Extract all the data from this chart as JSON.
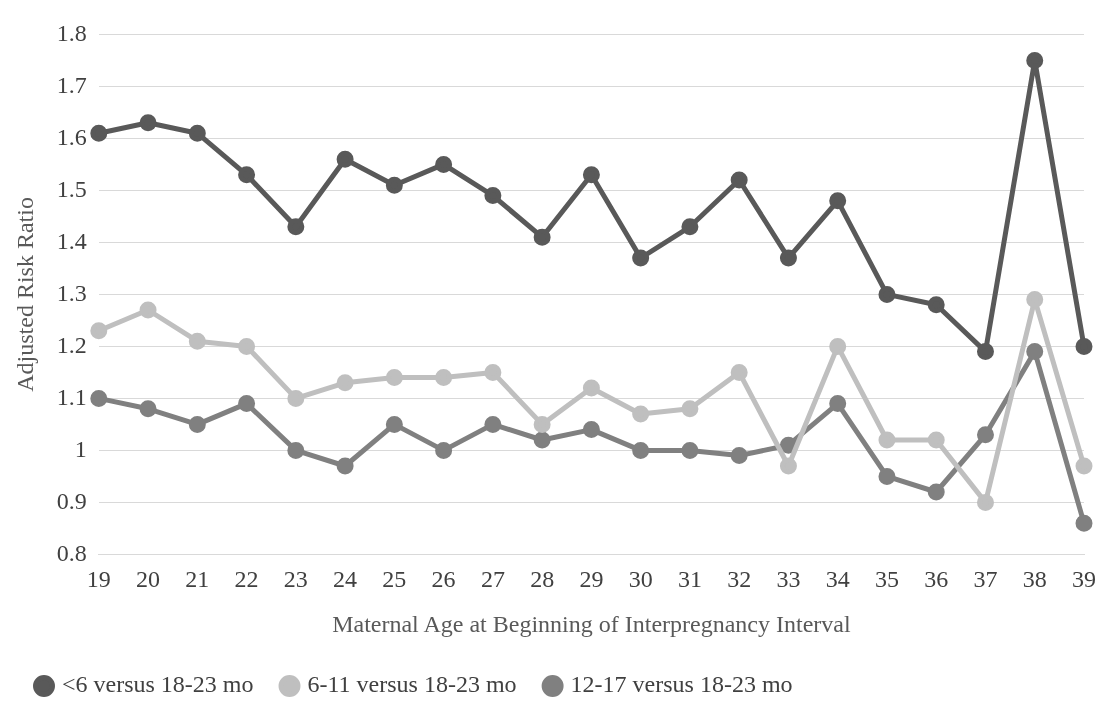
{
  "chart_data": {
    "type": "line",
    "xlabel": "Maternal Age at Beginning of Interpregnancy Interval",
    "ylabel": "Adjusted Risk Ratio",
    "categories": [
      "19",
      "20",
      "21",
      "22",
      "23",
      "24",
      "25",
      "26",
      "27",
      "28",
      "29",
      "30",
      "31",
      "32",
      "33",
      "34",
      "35",
      "36",
      "37",
      "38",
      "39"
    ],
    "series": [
      {
        "name": "<6 versus 18-23 mo",
        "color": "#595959",
        "values": [
          1.61,
          1.63,
          1.61,
          1.53,
          1.43,
          1.56,
          1.51,
          1.55,
          1.49,
          1.41,
          1.53,
          1.37,
          1.43,
          1.52,
          1.37,
          1.48,
          1.3,
          1.28,
          1.19,
          1.75,
          1.2
        ]
      },
      {
        "name": "6-11 versus 18-23 mo",
        "color": "#bfbfbf",
        "values": [
          1.23,
          1.27,
          1.21,
          1.2,
          1.1,
          1.13,
          1.14,
          1.14,
          1.15,
          1.05,
          1.12,
          1.07,
          1.08,
          1.15,
          0.97,
          1.2,
          1.02,
          1.02,
          0.9,
          1.29,
          0.97
        ]
      },
      {
        "name": "12-17 versus 18-23 mo",
        "color": "#808080",
        "values": [
          1.1,
          1.08,
          1.05,
          1.09,
          1.0,
          0.97,
          1.05,
          1.0,
          1.05,
          1.02,
          1.04,
          1.0,
          1.0,
          0.99,
          1.01,
          1.09,
          0.95,
          0.92,
          1.03,
          1.19,
          0.86
        ]
      }
    ],
    "ylim": [
      0.8,
      1.8
    ],
    "yticks": [
      0.8,
      0.9,
      1,
      1.1,
      1.2,
      1.3,
      1.4,
      1.5,
      1.6,
      1.7,
      1.8
    ],
    "grid": "y",
    "legend": "bottom",
    "marker": "circle",
    "line_style": "solid"
  }
}
